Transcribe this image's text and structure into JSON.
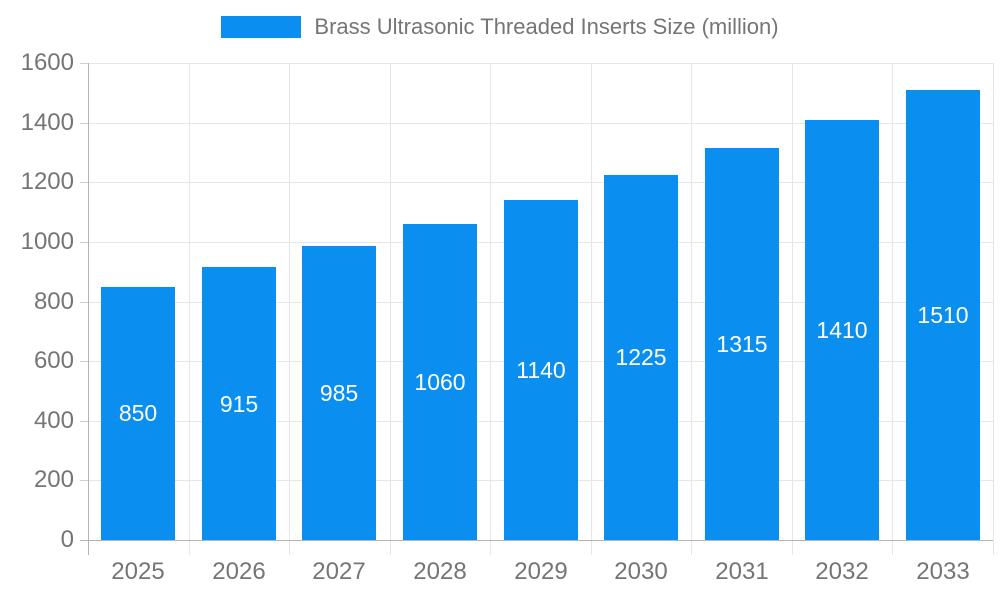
{
  "legend": {
    "label": "Brass Ultrasonic Threaded Inserts Size (million)"
  },
  "colors": {
    "bar": "#0A8FF0",
    "axis_text": "#757575",
    "grid": "#E6E6E6",
    "axis_line": "#B3B3B3",
    "tick": "#CFCFCF",
    "bar_label": "#FFFFFF",
    "background": "#FFFFFF"
  },
  "chart_data": {
    "type": "bar",
    "title": "Brass Ultrasonic Threaded Inserts Size (million)",
    "categories": [
      "2025",
      "2026",
      "2027",
      "2028",
      "2029",
      "2030",
      "2031",
      "2032",
      "2033"
    ],
    "values": [
      850,
      915,
      985,
      1060,
      1140,
      1225,
      1315,
      1410,
      1510
    ],
    "xlabel": "",
    "ylabel": "",
    "ylim": [
      0,
      1600
    ],
    "ytick_step": 200,
    "yticks": [
      0,
      200,
      400,
      600,
      800,
      1000,
      1200,
      1400,
      1600
    ],
    "grid": true,
    "legend_position": "top",
    "bar_label_position": "inside-center"
  }
}
